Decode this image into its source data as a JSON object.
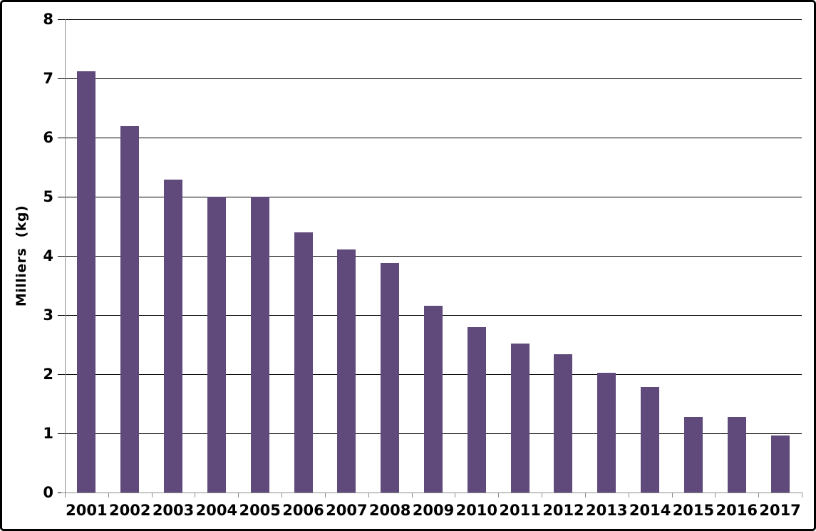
{
  "chart_data": {
    "type": "bar",
    "title": "",
    "categories": [
      "2001",
      "2002",
      "2003",
      "2004",
      "2005",
      "2006",
      "2007",
      "2008",
      "2009",
      "2010",
      "2011",
      "2012",
      "2013",
      "2014",
      "2015",
      "2016",
      "2017"
    ],
    "values": [
      7.12,
      6.19,
      5.29,
      5.0,
      5.0,
      4.4,
      4.11,
      3.88,
      3.16,
      2.79,
      2.52,
      2.34,
      2.02,
      1.78,
      1.28,
      1.28,
      0.97
    ],
    "xlabel": "",
    "ylabel": "Milliers  (kg)",
    "ylim": [
      0,
      8
    ],
    "yticks": [
      0,
      1,
      2,
      3,
      4,
      5,
      6,
      7,
      8
    ],
    "grid": true,
    "legend_position": "none",
    "colors": {
      "bar_fill": "#604A7B",
      "gridline": "#000000",
      "axis_line": "#8C8C8C",
      "x_tick": "#8C8C8C",
      "y_tick": "#000000",
      "text": "#000000",
      "background": "#FFFFFF",
      "outer_border": "#000000"
    }
  }
}
